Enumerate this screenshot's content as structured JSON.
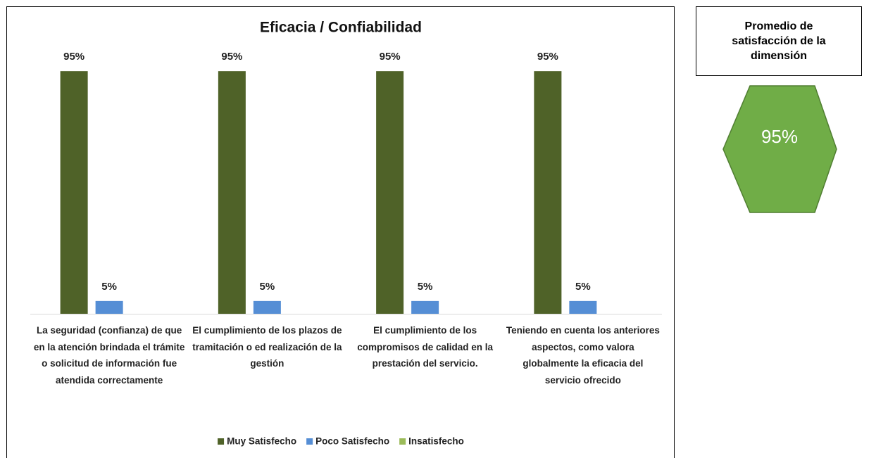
{
  "chart_data": {
    "type": "bar",
    "title": "Eficacia / Confiabilidad",
    "categories": [
      "La seguridad (confianza) de que en la atención brindada el trámite o solicitud de información fue atendida correctamente",
      "El cumplimiento de los plazos de tramitación o ed realización de la gestión",
      "El cumplimiento de los compromisos de calidad en la prestación del servicio.",
      "Teniendo en cuenta los anteriores aspectos, como valora globalmente la eficacia del servicio ofrecido"
    ],
    "series": [
      {
        "name": "Muy Satisfecho",
        "color": "#4f6228",
        "values": [
          95,
          95,
          95,
          95
        ],
        "value_labels": [
          "95%",
          "95%",
          "95%",
          "95%"
        ]
      },
      {
        "name": "Poco Satisfecho",
        "color": "#558ed5",
        "values": [
          5,
          5,
          5,
          5
        ],
        "value_labels": [
          "5%",
          "5%",
          "5%",
          "5%"
        ]
      },
      {
        "name": "Insatisfecho",
        "color": "#9bbb59",
        "values": [
          0,
          0,
          0,
          0
        ]
      }
    ],
    "ylim": [
      0,
      100
    ],
    "legend": "bottom"
  },
  "summary": {
    "title": "Promedio de satisfacción de la dimensión",
    "value": "95%"
  }
}
